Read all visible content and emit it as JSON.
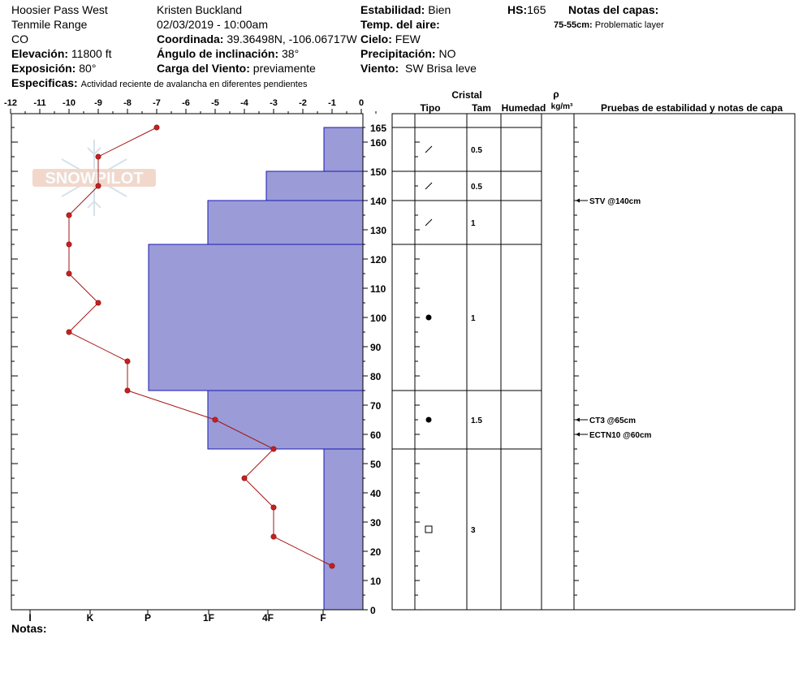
{
  "header": {
    "location": "Hoosier Pass West",
    "range": "Tenmile Range",
    "state": "CO",
    "elevation_label": "Elevación:",
    "elevation_value": "11800 ft",
    "aspect_label": "Exposición:",
    "aspect_value": "80°",
    "specifics_label": "Especificas:",
    "specifics_value": "Actividad reciente de avalancha en diferentes pendientes",
    "observer": "Kristen Buckland",
    "datetime": "02/03/2019 - 10:00am",
    "coord_label": "Coordinada:",
    "coord_value": "39.36498N, -106.06717W",
    "slope_label": "Ángulo de inclinación:",
    "slope_value": "38°",
    "wind_load_label": "Carga del Viento:",
    "wind_load_value": "previamente",
    "stability_label": "Estabilidad:",
    "stability_value": "Bien",
    "air_temp_label": "Temp. del aire:",
    "air_temp_value": "",
    "sky_label": "Cielo:",
    "sky_value": "FEW",
    "precip_label": "Precipitación:",
    "precip_value": "NO",
    "wind_label": "Viento:",
    "wind_value": "SW Brisa leve",
    "hs_label": "HS:",
    "hs_value": "165",
    "layer_notes_label": "Notas del capas:",
    "layer_notes_range": "75-55cm:",
    "layer_notes_text": "Problematic layer"
  },
  "logo": {
    "text": "SNOWPILOT"
  },
  "notes_label": "Notas:",
  "table_headers": {
    "crystal": "Cristal",
    "type": "Tipo",
    "size": "Tam",
    "moisture": "Humedad",
    "rho": "ρ",
    "density_unit": "kg/m³",
    "tests": "Pruebas de estabilidad y notas de capa"
  },
  "colors": {
    "hardness_fill": "#9b9bd7",
    "hardness_edge": "#1a1ab4",
    "temp_line": "#a31515"
  },
  "chart_data": {
    "type": "snow-profile",
    "temperature_axis": {
      "min": -12,
      "max": 0,
      "ticks": [
        "-12",
        "-11",
        "-10",
        "-9",
        "-8",
        "-7",
        "-6",
        "-5",
        "-4",
        "-3",
        "-2",
        "-1",
        "0"
      ]
    },
    "depth_axis": {
      "min": 0,
      "max": 165,
      "ticks": [
        "0",
        "10",
        "20",
        "30",
        "40",
        "50",
        "60",
        "70",
        "80",
        "90",
        "100",
        "110",
        "120",
        "130",
        "140",
        "150",
        "160",
        "165"
      ]
    },
    "hardness_ticks": [
      "I",
      "K",
      "P",
      "1F",
      "4F",
      "F"
    ],
    "temperature_profile": [
      {
        "depth": 165,
        "temp": -7
      },
      {
        "depth": 155,
        "temp": -9
      },
      {
        "depth": 145,
        "temp": -9
      },
      {
        "depth": 135,
        "temp": -10
      },
      {
        "depth": 125,
        "temp": -10
      },
      {
        "depth": 115,
        "temp": -10
      },
      {
        "depth": 105,
        "temp": -9
      },
      {
        "depth": 95,
        "temp": -10
      },
      {
        "depth": 85,
        "temp": -8
      },
      {
        "depth": 75,
        "temp": -8
      },
      {
        "depth": 65,
        "temp": -5
      },
      {
        "depth": 55,
        "temp": -3
      },
      {
        "depth": 45,
        "temp": -4
      },
      {
        "depth": 35,
        "temp": -3
      },
      {
        "depth": 25,
        "temp": -3
      },
      {
        "depth": 15,
        "temp": -1
      }
    ],
    "layers": [
      {
        "top": 165,
        "bottom": 150,
        "hardness": "F",
        "grain": "slash",
        "size": "0.5"
      },
      {
        "top": 150,
        "bottom": 140,
        "hardness": "4F",
        "grain": "slash",
        "size": "0.5"
      },
      {
        "top": 140,
        "bottom": 125,
        "hardness": "1F",
        "grain": "slash",
        "size": "1"
      },
      {
        "top": 125,
        "bottom": 75,
        "hardness": "P",
        "grain": "dot",
        "size": "1"
      },
      {
        "top": 75,
        "bottom": 55,
        "hardness": "1F",
        "grain": "dot",
        "size": "1.5"
      },
      {
        "top": 55,
        "bottom": 0,
        "hardness": "F",
        "grain": "square",
        "size": "3"
      }
    ],
    "stability_tests": [
      {
        "depth": 140,
        "label": "STV @140cm"
      },
      {
        "depth": 65,
        "label": "CT3 @65cm"
      },
      {
        "depth": 60,
        "label": "ECTN10 @60cm"
      }
    ]
  }
}
